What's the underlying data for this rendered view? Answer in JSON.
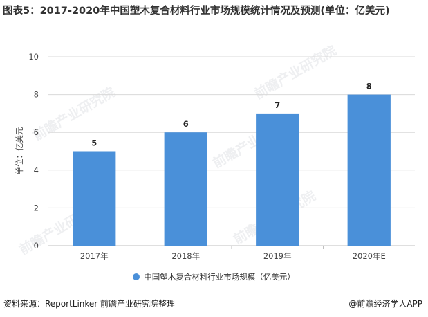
{
  "title": "图表5：2017-2020年中国塑木复合材料行业市场规模统计情况及预测(单位：亿美元)",
  "watermark": "前瞻产业研究院",
  "source": "资料来源：ReportLinker 前瞻产业研究院整理",
  "brand": "@前瞻经济学人APP",
  "colors": {
    "bar": "#4a90d9",
    "grid": "#d9d9d9",
    "axis": "#bfbfbf"
  },
  "chart_data": {
    "type": "bar",
    "categories": [
      "2017年",
      "2018年",
      "2019年",
      "2020年E"
    ],
    "series": [
      {
        "name": "中国塑木复合材料行业市场规模（亿美元）",
        "values": [
          5,
          6,
          7,
          8
        ]
      }
    ],
    "ylabel": "单位：亿美元",
    "xlabel": "",
    "ylim": [
      0,
      10
    ],
    "yticks": [
      0,
      2,
      4,
      6,
      8,
      10
    ],
    "grid": true,
    "legend": "bottom",
    "data_labels": true
  }
}
